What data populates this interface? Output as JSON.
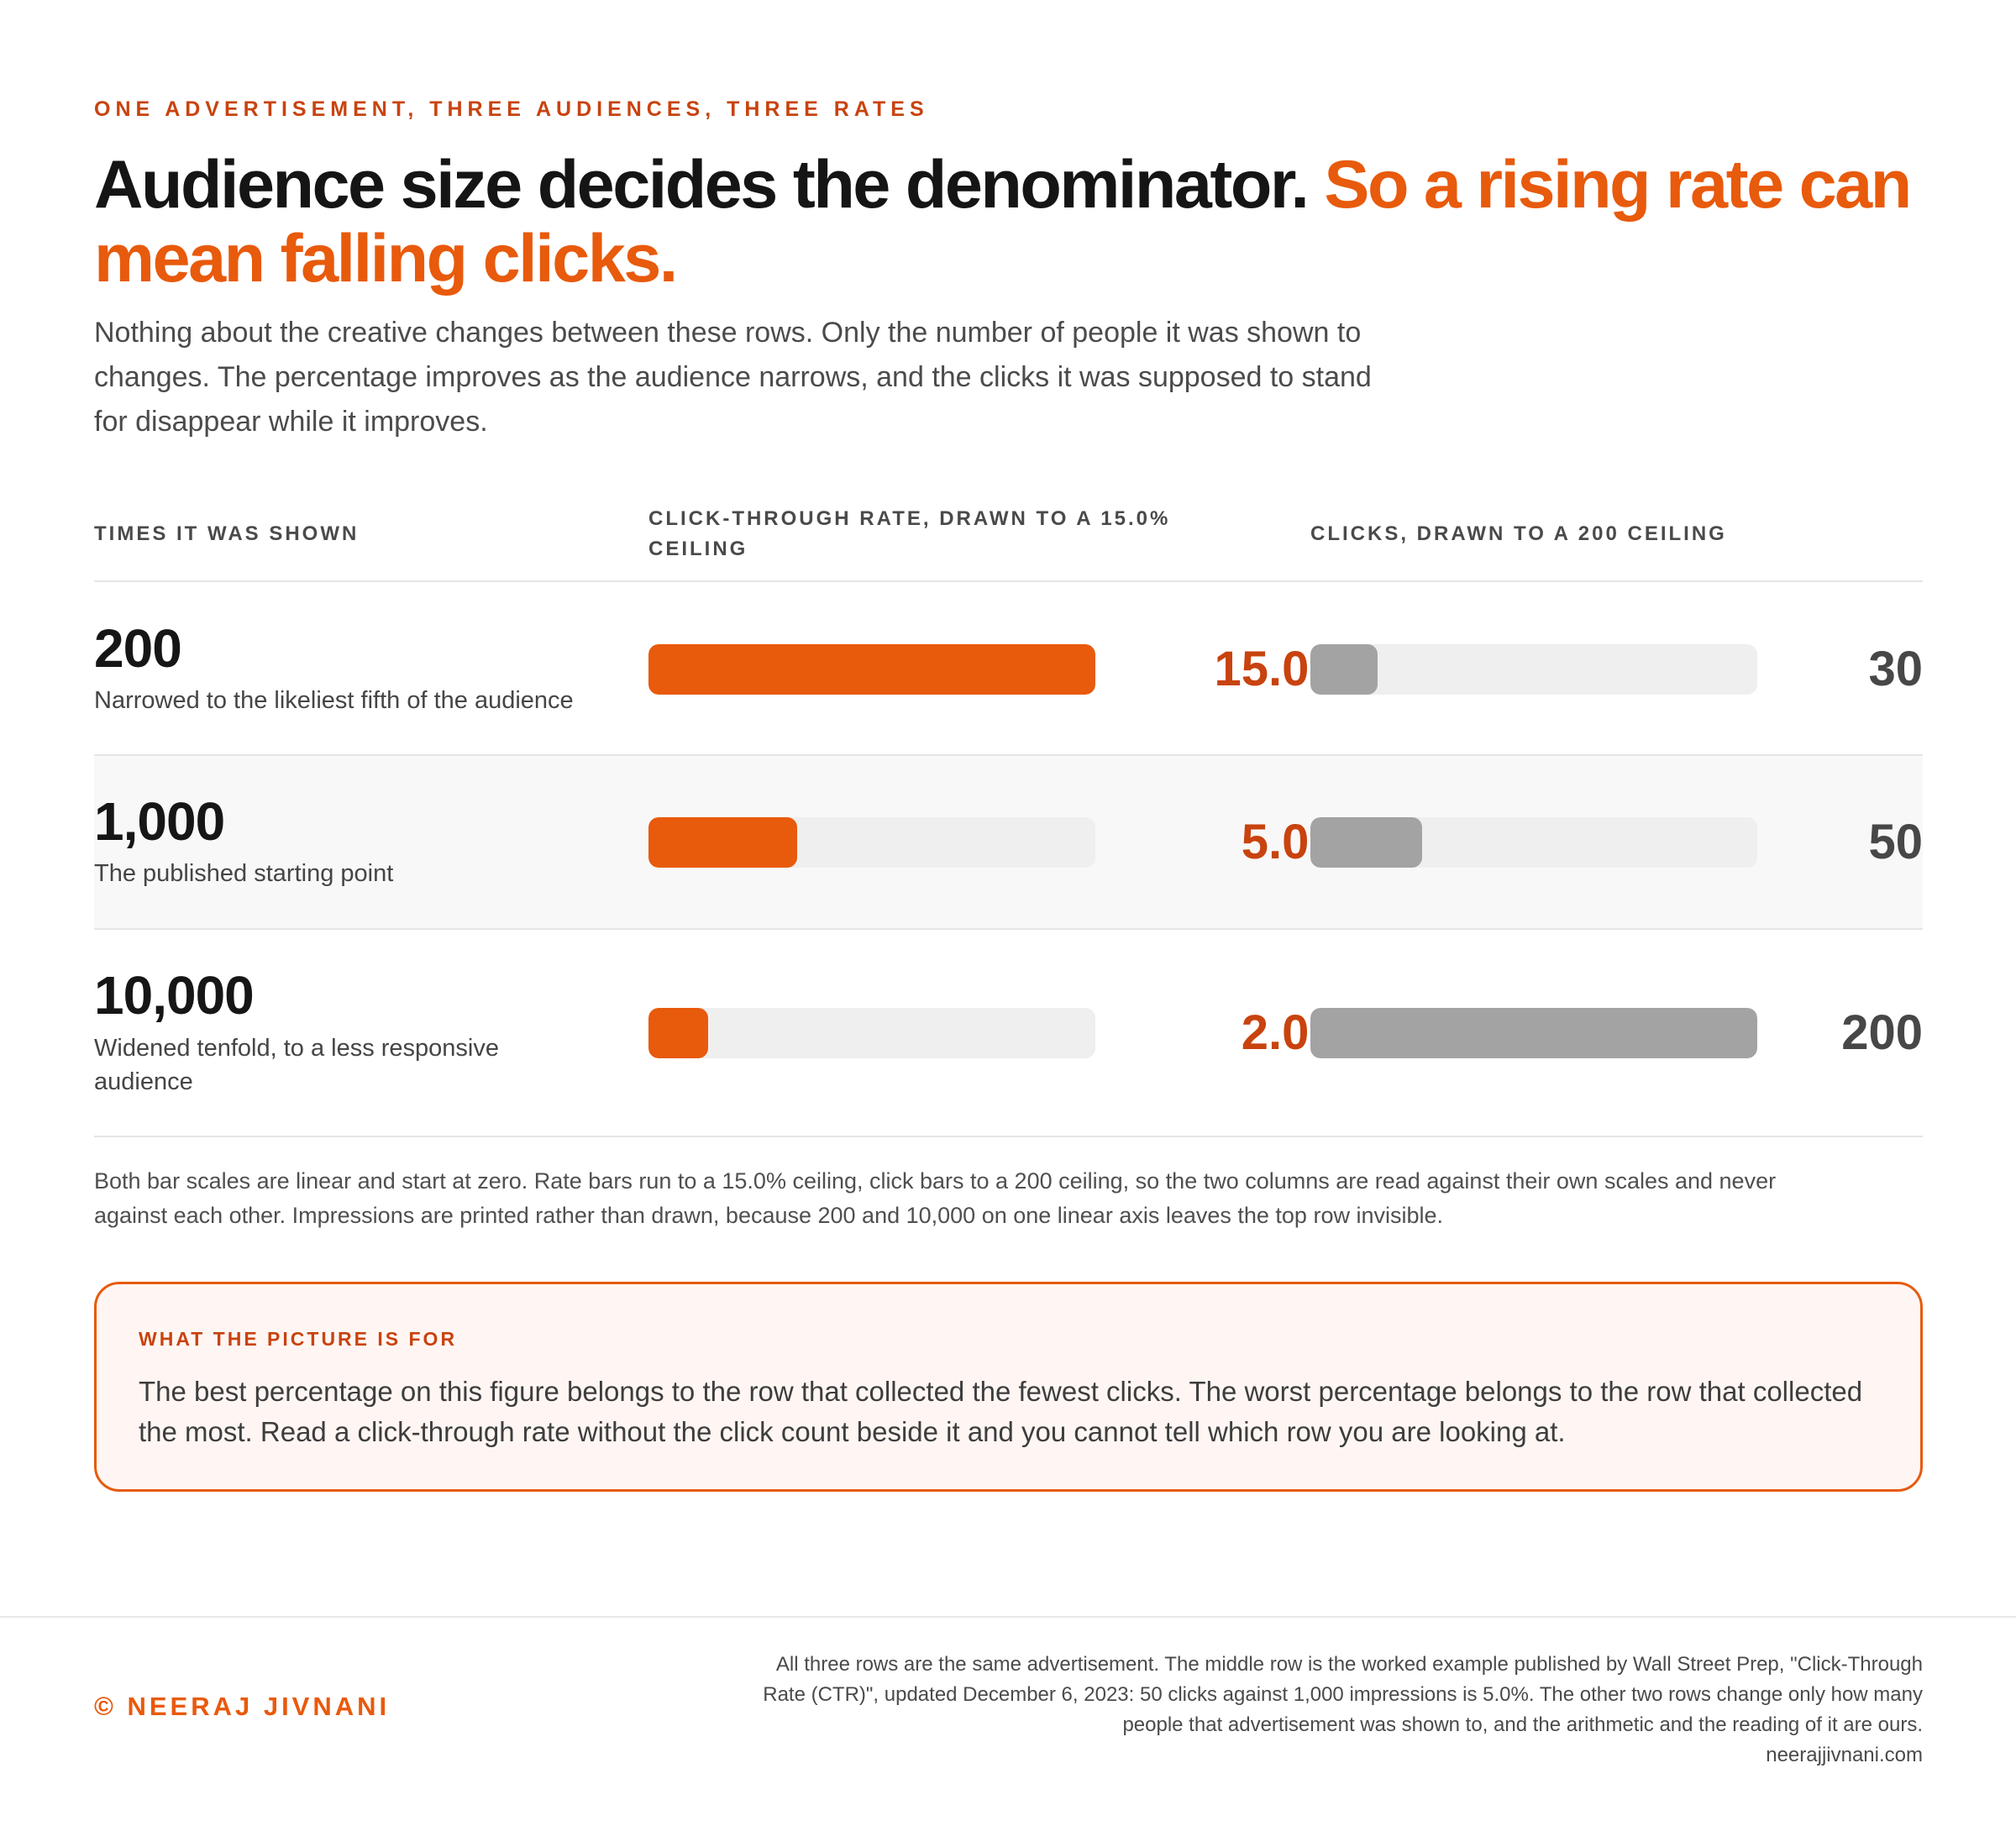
{
  "eyebrow": "ONE ADVERTISEMENT, THREE AUDIENCES, THREE RATES",
  "headline": {
    "lead": "Audience size decides the denominator.",
    "accent": "So a rising rate can mean falling clicks."
  },
  "lede": "Nothing about the creative changes between these rows. Only the number of people it was shown to changes. The percentage improves as the audience narrows, and the clicks it was supposed to stand for disappear while it improves.",
  "columns": {
    "impressions": "TIMES IT WAS SHOWN",
    "rate": "CLICK-THROUGH RATE, DRAWN TO A 15.0% CEILING",
    "clicks": "CLICKS, DRAWN TO A 200 CEILING"
  },
  "chart_data": {
    "type": "bar",
    "rate_ceiling": 15.0,
    "clicks_ceiling": 200,
    "rows": [
      {
        "impressions_label": "200",
        "impressions": 200,
        "description": "Narrowed to the likeliest fifth of the audience",
        "rate": 15.0,
        "rate_label": "15.0%",
        "clicks": 30,
        "clicks_label": "30"
      },
      {
        "impressions_label": "1,000",
        "impressions": 1000,
        "description": "The published starting point",
        "rate": 5.0,
        "rate_label": "5.0%",
        "clicks": 50,
        "clicks_label": "50"
      },
      {
        "impressions_label": "10,000",
        "impressions": 10000,
        "description": "Widened tenfold, to a less responsive audience",
        "rate": 2.0,
        "rate_label": "2.0%",
        "clicks": 200,
        "clicks_label": "200"
      }
    ]
  },
  "footnote": "Both bar scales are linear and start at zero. Rate bars run to a 15.0% ceiling, click bars to a 200 ceiling, so the two columns are read against their own scales and never against each other. Impressions are printed rather than drawn, because 200 and 10,000 on one linear axis leaves the top row invisible.",
  "callout": {
    "label": "WHAT THE PICTURE IS FOR",
    "text": "The best percentage on this figure belongs to the row that collected the fewest clicks. The worst percentage belongs to the row that collected the most. Read a click-through rate without the click count beside it and you cannot tell which row you are looking at."
  },
  "footer": {
    "brand": "© NEERAJ JIVNANI",
    "source": "All three rows are the same advertisement. The middle row is the worked example published by Wall Street Prep, \"Click-Through Rate (CTR)\", updated December 6, 2023: 50 clicks against 1,000 impressions is 5.0%. The other two rows change only how many people that advertisement was shown to, and the arithmetic and the reading of it are ours.",
    "site": "neerajjivnani.com"
  },
  "colors": {
    "accent": "#e85a0c",
    "accent_dark": "#c8430f",
    "clicks_bar": "#a3a3a3",
    "track": "#efefef",
    "callout_bg": "#fff6f3"
  }
}
